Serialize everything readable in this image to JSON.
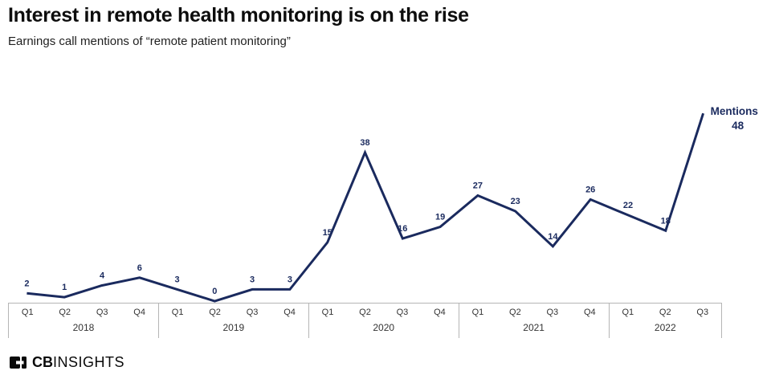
{
  "header": {
    "title": "Interest in remote health monitoring is on the rise",
    "subtitle": "Earnings call mentions of “remote patient monitoring”"
  },
  "chart_data": {
    "type": "line",
    "title": "Interest in remote health monitoring is on the rise",
    "subtitle": "Earnings call mentions of “remote patient monitoring”",
    "categories": [
      "2018 Q1",
      "2018 Q2",
      "2018 Q3",
      "2018 Q4",
      "2019 Q1",
      "2019 Q2",
      "2019 Q3",
      "2019 Q4",
      "2020 Q1",
      "2020 Q2",
      "2020 Q3",
      "2020 Q4",
      "2021 Q1",
      "2021 Q2",
      "2021 Q3",
      "2021 Q4",
      "2022 Q1",
      "2022 Q2",
      "2022 Q3"
    ],
    "values": [
      2,
      1,
      4,
      6,
      3,
      0,
      3,
      3,
      15,
      38,
      16,
      19,
      27,
      23,
      14,
      26,
      22,
      18,
      48
    ],
    "years": [
      {
        "label": "2018",
        "quarters": [
          "Q1",
          "Q2",
          "Q3",
          "Q4"
        ]
      },
      {
        "label": "2019",
        "quarters": [
          "Q1",
          "Q2",
          "Q3",
          "Q4"
        ]
      },
      {
        "label": "2020",
        "quarters": [
          "Q1",
          "Q2",
          "Q3",
          "Q4"
        ]
      },
      {
        "label": "2021",
        "quarters": [
          "Q1",
          "Q2",
          "Q3",
          "Q4"
        ]
      },
      {
        "label": "2022",
        "quarters": [
          "Q1",
          "Q2",
          "Q3"
        ]
      }
    ],
    "end_annotation": {
      "label": "Mentions",
      "value": "48"
    },
    "line_color": "#1a2a5e",
    "label_color": "#1a2a5e",
    "axis_line_color": "#b5b5b5",
    "xlabel": "",
    "ylabel": "",
    "ylim": [
      0,
      48
    ],
    "grid": false,
    "legend_position": "none"
  },
  "footer": {
    "logo_cb": "CB",
    "logo_insights": "INSIGHTS"
  }
}
